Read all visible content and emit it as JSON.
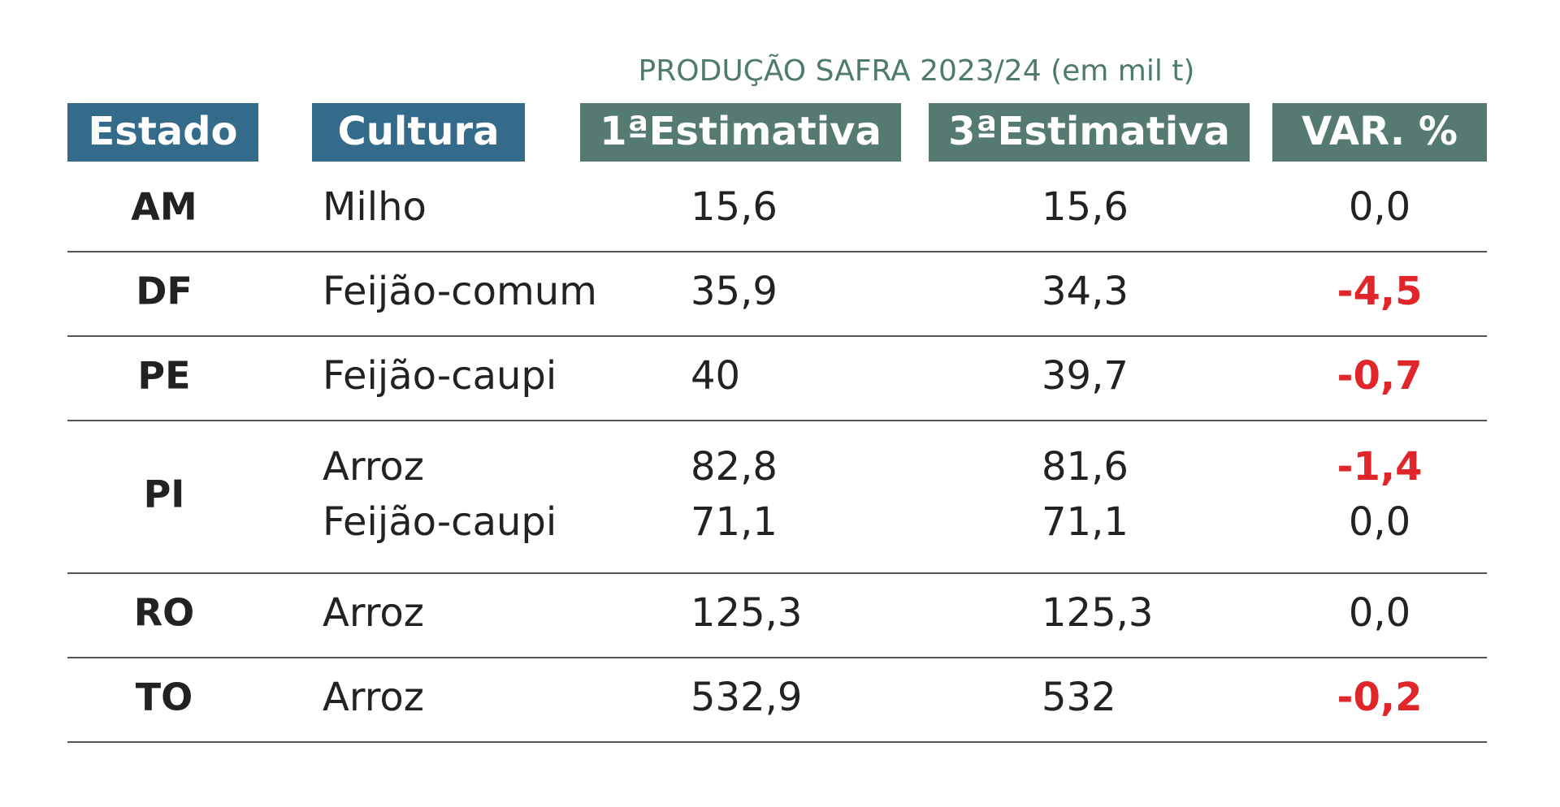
{
  "table": {
    "super_header": "PRODUÇÃO SAFRA 2023/24 (em mil t)",
    "columns": [
      "Estado",
      "Cultura",
      "1ªEstimativa",
      "3ªEstimativa",
      "VAR. %"
    ],
    "rows": [
      {
        "state": "AM",
        "items": [
          [
            "Milho",
            "15,6",
            "15,6",
            "0,0"
          ]
        ]
      },
      {
        "state": "DF",
        "items": [
          [
            "Feijão-comum",
            "35,9",
            "34,3",
            "-4,5"
          ]
        ]
      },
      {
        "state": "PE",
        "items": [
          [
            "Feijão-caupi",
            "40",
            "39,7",
            "-0,7"
          ]
        ]
      },
      {
        "state": "PI",
        "items": [
          [
            "Arroz",
            "82,8",
            "81,6",
            "-1,4"
          ],
          [
            "Feijão-caupi",
            "71,1",
            "71,1",
            "0,0"
          ]
        ]
      },
      {
        "state": "RO",
        "items": [
          [
            "Arroz",
            "125,3",
            "125,3",
            "0,0"
          ]
        ]
      },
      {
        "state": "TO",
        "items": [
          [
            "Arroz",
            "532,9",
            "532",
            "-0,2"
          ]
        ]
      }
    ]
  }
}
